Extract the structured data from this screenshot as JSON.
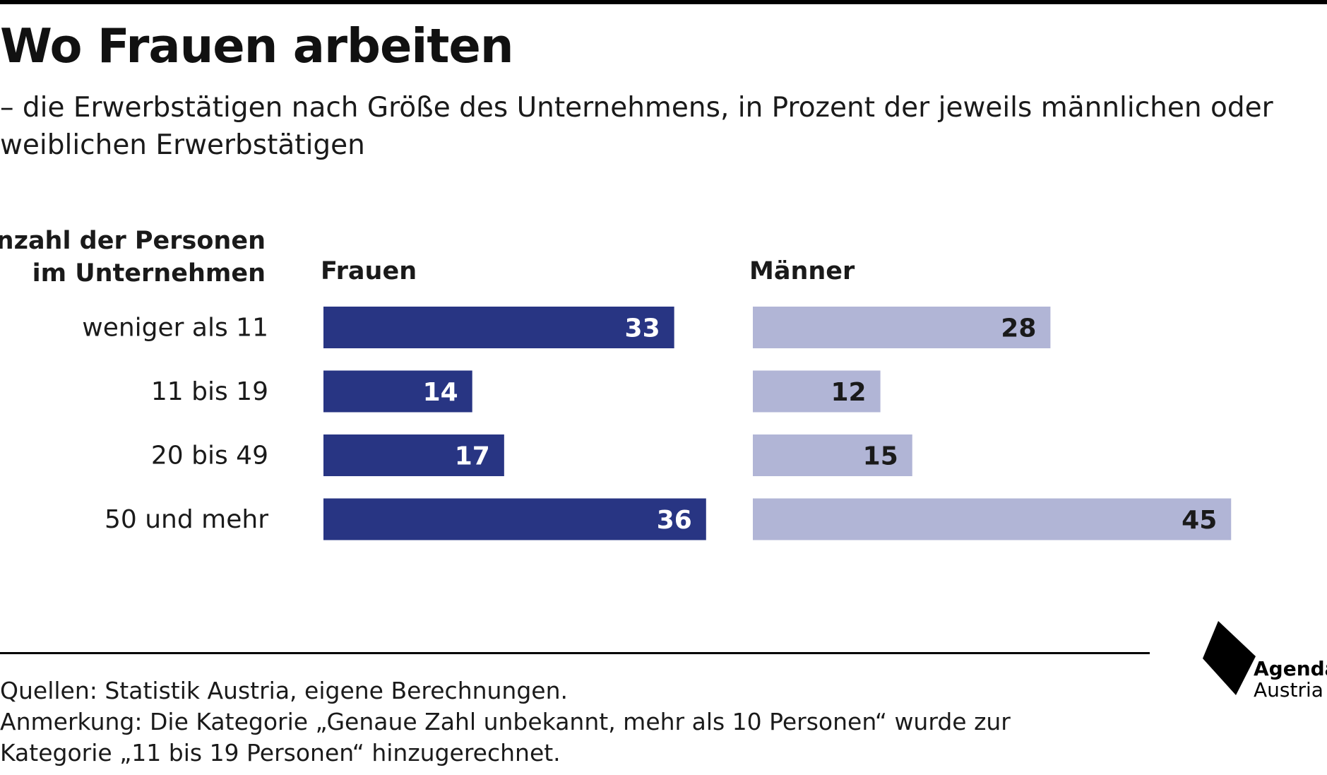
{
  "header": {
    "title": "Wo Frauen arbeiten",
    "subtitle": "– die Erwerbstätigen nach Größe des Unternehmens, in Prozent der jeweils männlichen oder weiblichen Erwerbstätigen"
  },
  "category_header": {
    "line1": "Anzahl der Personen",
    "line2": "im Unternehmen"
  },
  "chart_data": {
    "type": "bar",
    "orientation": "horizontal",
    "title": "Wo Frauen arbeiten",
    "subtitle": "– die Erwerbstätigen nach Größe des Unternehmens, in Prozent der jeweils männlichen oder weiblichen Erwerbstätigen",
    "category_axis_label": "Anzahl der Personen im Unternehmen",
    "categories": [
      "weniger als 11",
      "11 bis 19",
      "20 bis 49",
      "50 und mehr"
    ],
    "series": [
      {
        "name": "Frauen",
        "values": [
          33,
          14,
          17,
          36
        ],
        "color": "#283583",
        "label_color": "#ffffff"
      },
      {
        "name": "Männer",
        "values": [
          28,
          12,
          15,
          45
        ],
        "color": "#b1b5d6",
        "label_color": "#1a1a1a"
      }
    ],
    "layout": "small multiples, one panel per series",
    "data_labels": true,
    "grid": false,
    "legend": "panel headers"
  },
  "notes": {
    "source": "Quellen: Statistik Austria, eigene Berechnungen.",
    "annotation_line1": "Anmerkung: Die Kategorie „Genaue Zahl unbekannt, mehr als 10 Personen“ wurde zur",
    "annotation_line2": "Kategorie „11 bis 19 Personen“ hinzugerechnet."
  },
  "logo": {
    "line1": "Agenda",
    "line2": "Austria"
  }
}
